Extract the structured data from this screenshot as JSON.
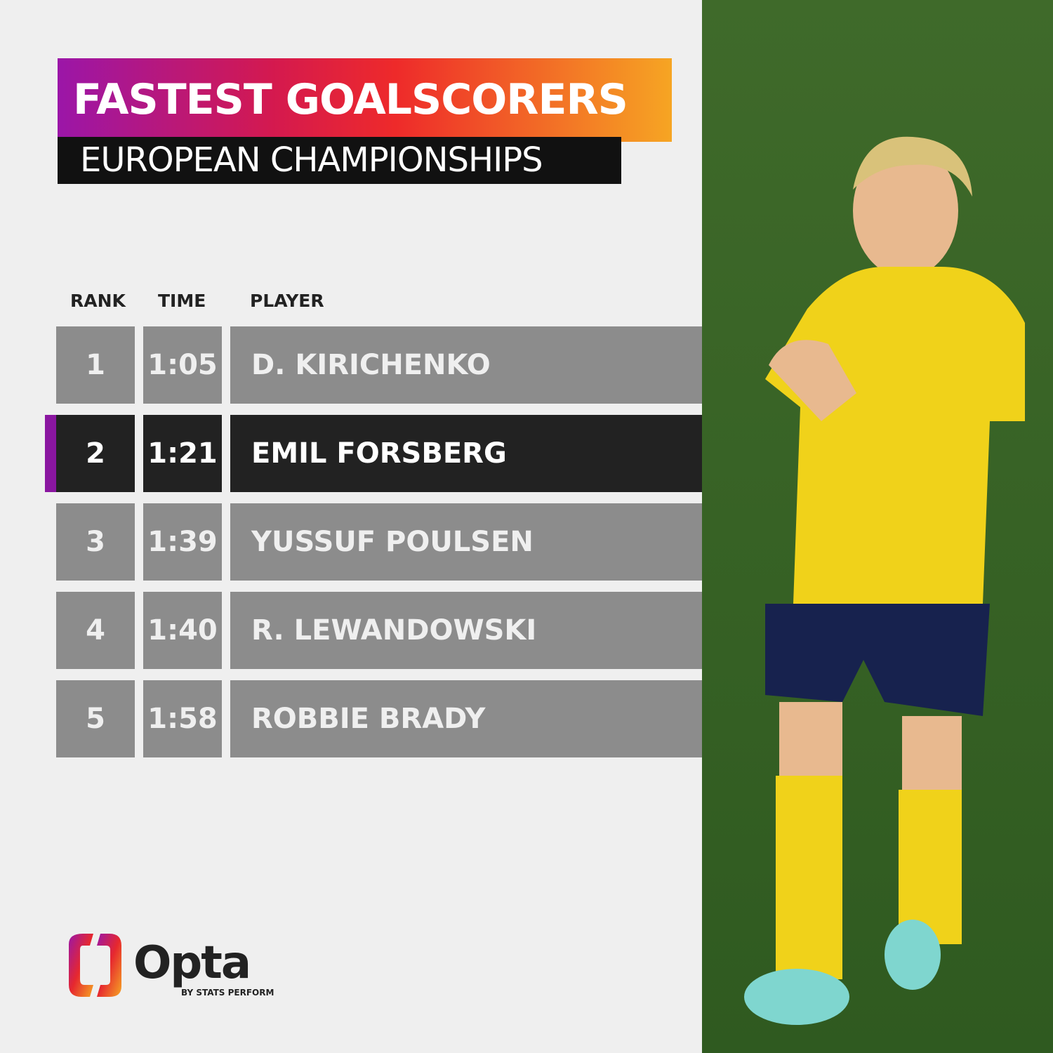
{
  "header": {
    "title": "FASTEST GOALSCORERS",
    "subtitle": "EUROPEAN CHAMPIONSHIPS"
  },
  "table": {
    "columns": [
      "RANK",
      "TIME",
      "PLAYER"
    ],
    "rows": [
      [
        1,
        "1:05",
        "D. KIRICHENKO"
      ],
      [
        2,
        "1:21",
        "EMIL FORSBERG"
      ],
      [
        3,
        "1:39",
        "YUSSUF POULSEN"
      ],
      [
        4,
        "1:40",
        "R. LEWANDOWSKI"
      ],
      [
        5,
        "1:58",
        "ROBBIE BRADY"
      ]
    ]
  },
  "footer": {
    "logo": "Opta",
    "byline": "BY STATS PERFORM"
  }
}
